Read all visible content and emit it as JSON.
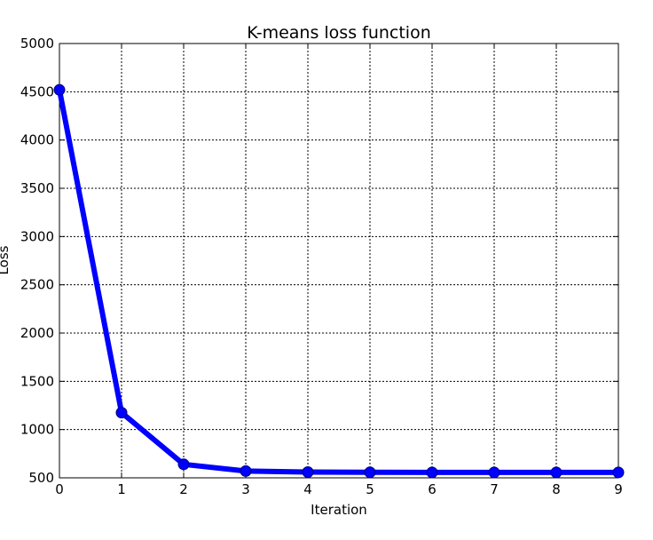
{
  "chart_data": {
    "type": "line",
    "title": "K-means loss function",
    "xlabel": "Iteration",
    "ylabel": "Loss",
    "xlim": [
      0,
      9
    ],
    "ylim": [
      500,
      5000
    ],
    "x_ticks": [
      "0",
      "1",
      "2",
      "3",
      "4",
      "5",
      "6",
      "7",
      "8",
      "9"
    ],
    "y_ticks": [
      "500",
      "1000",
      "1500",
      "2000",
      "2500",
      "3000",
      "3500",
      "4000",
      "4500",
      "5000"
    ],
    "grid": true,
    "series": [
      {
        "color": "#0000ff",
        "marker": "circle",
        "x": [
          0,
          1,
          2,
          3,
          4,
          5,
          6,
          7,
          8,
          9
        ],
        "y": [
          4520,
          1175,
          640,
          570,
          560,
          557,
          556,
          556,
          556,
          556
        ]
      }
    ]
  }
}
